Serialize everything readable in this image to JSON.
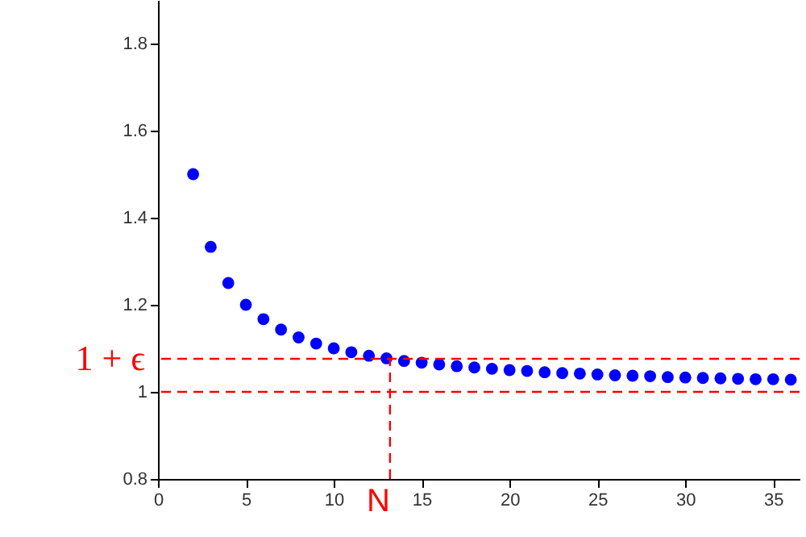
{
  "chart_data": {
    "type": "scatter",
    "x": [
      2,
      3,
      4,
      5,
      6,
      7,
      8,
      9,
      10,
      11,
      12,
      13,
      14,
      15,
      16,
      17,
      18,
      19,
      20,
      21,
      22,
      23,
      24,
      25,
      26,
      27,
      28,
      29,
      30,
      31,
      32,
      33,
      34,
      35,
      36
    ],
    "series": [
      {
        "color": "#0000ff",
        "values": [
          1.5,
          1.333,
          1.25,
          1.2,
          1.167,
          1.143,
          1.125,
          1.111,
          1.1,
          1.091,
          1.083,
          1.077,
          1.071,
          1.067,
          1.063,
          1.059,
          1.056,
          1.053,
          1.05,
          1.048,
          1.045,
          1.043,
          1.042,
          1.04,
          1.038,
          1.037,
          1.036,
          1.034,
          1.033,
          1.032,
          1.031,
          1.03,
          1.029,
          1.029,
          1.028
        ]
      }
    ],
    "xlim": [
      0,
      36.5
    ],
    "ylim": [
      0.8,
      1.9
    ],
    "xticks": [
      0,
      5,
      10,
      15,
      20,
      25,
      30,
      35
    ],
    "yticks": [
      0.8,
      1,
      1.2,
      1.4,
      1.6,
      1.8
    ],
    "marker": "circle",
    "grid": false,
    "ref_lines": [
      {
        "axis": "y",
        "value": 1,
        "color": "#ff0000",
        "line_style": "dashed"
      },
      {
        "axis": "y",
        "value": 1.076,
        "label": "1 + ϵ",
        "color": "#ff0000",
        "line_style": "dashed"
      },
      {
        "axis": "x",
        "value": 13.2,
        "label": "N",
        "color": "#ff0000",
        "line_style": "dashed"
      }
    ]
  }
}
